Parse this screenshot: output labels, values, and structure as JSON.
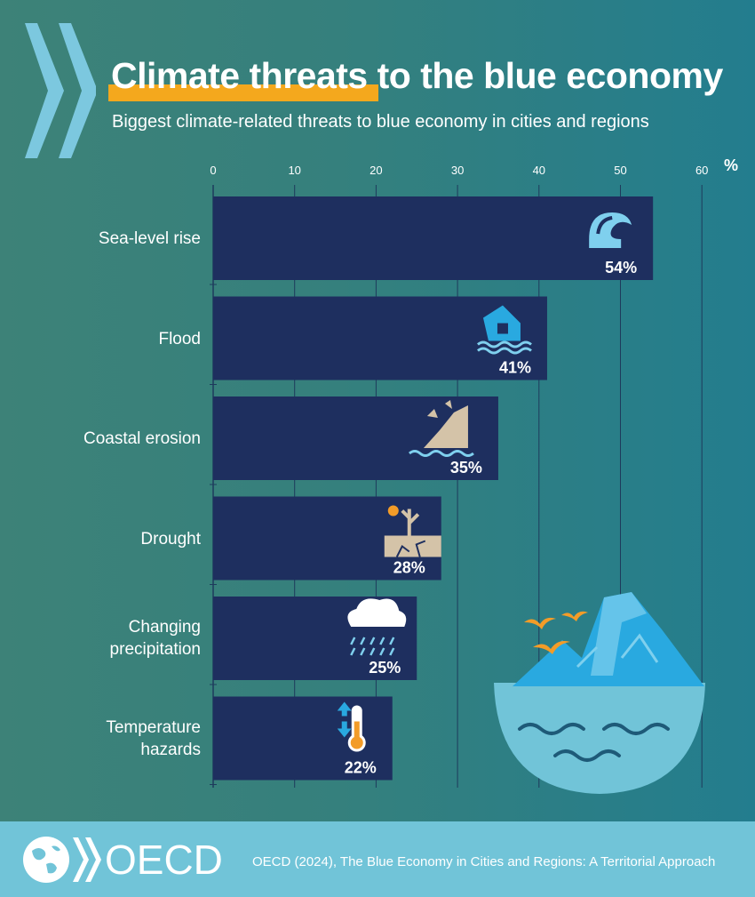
{
  "header": {
    "title": "Climate threats to the blue economy",
    "subtitle": "Biggest climate-related threats to blue economy in cities and regions",
    "unit": "%"
  },
  "colors": {
    "bar": "#1e2f5f",
    "accent": "#f4a81d",
    "light_blue": "#71c4d8",
    "icon_blue": "#29a9e0"
  },
  "chart_data": {
    "type": "bar",
    "orientation": "horizontal",
    "categories": [
      "Sea-level rise",
      "Flood",
      "Coastal erosion",
      "Drought",
      "Changing precipitation",
      "Temperature hazards"
    ],
    "values": [
      54,
      41,
      35,
      28,
      25,
      22
    ],
    "value_labels": [
      "54%",
      "41%",
      "35%",
      "28%",
      "25%",
      "22%"
    ],
    "icons": [
      "wave-icon",
      "flooded-house-icon",
      "eroding-cliff-icon",
      "drought-icon",
      "rain-cloud-icon",
      "thermometer-icon"
    ],
    "xlim": [
      0,
      60
    ],
    "x_ticks": [
      0,
      10,
      20,
      30,
      40,
      50,
      60
    ],
    "grid": true,
    "title": "Climate threats to the blue economy",
    "xlabel": "%",
    "ylabel": ""
  },
  "footer": {
    "logo_text": "OECD",
    "source": "OECD (2024), The Blue Economy in Cities and Regions: A Territorial Approach"
  }
}
